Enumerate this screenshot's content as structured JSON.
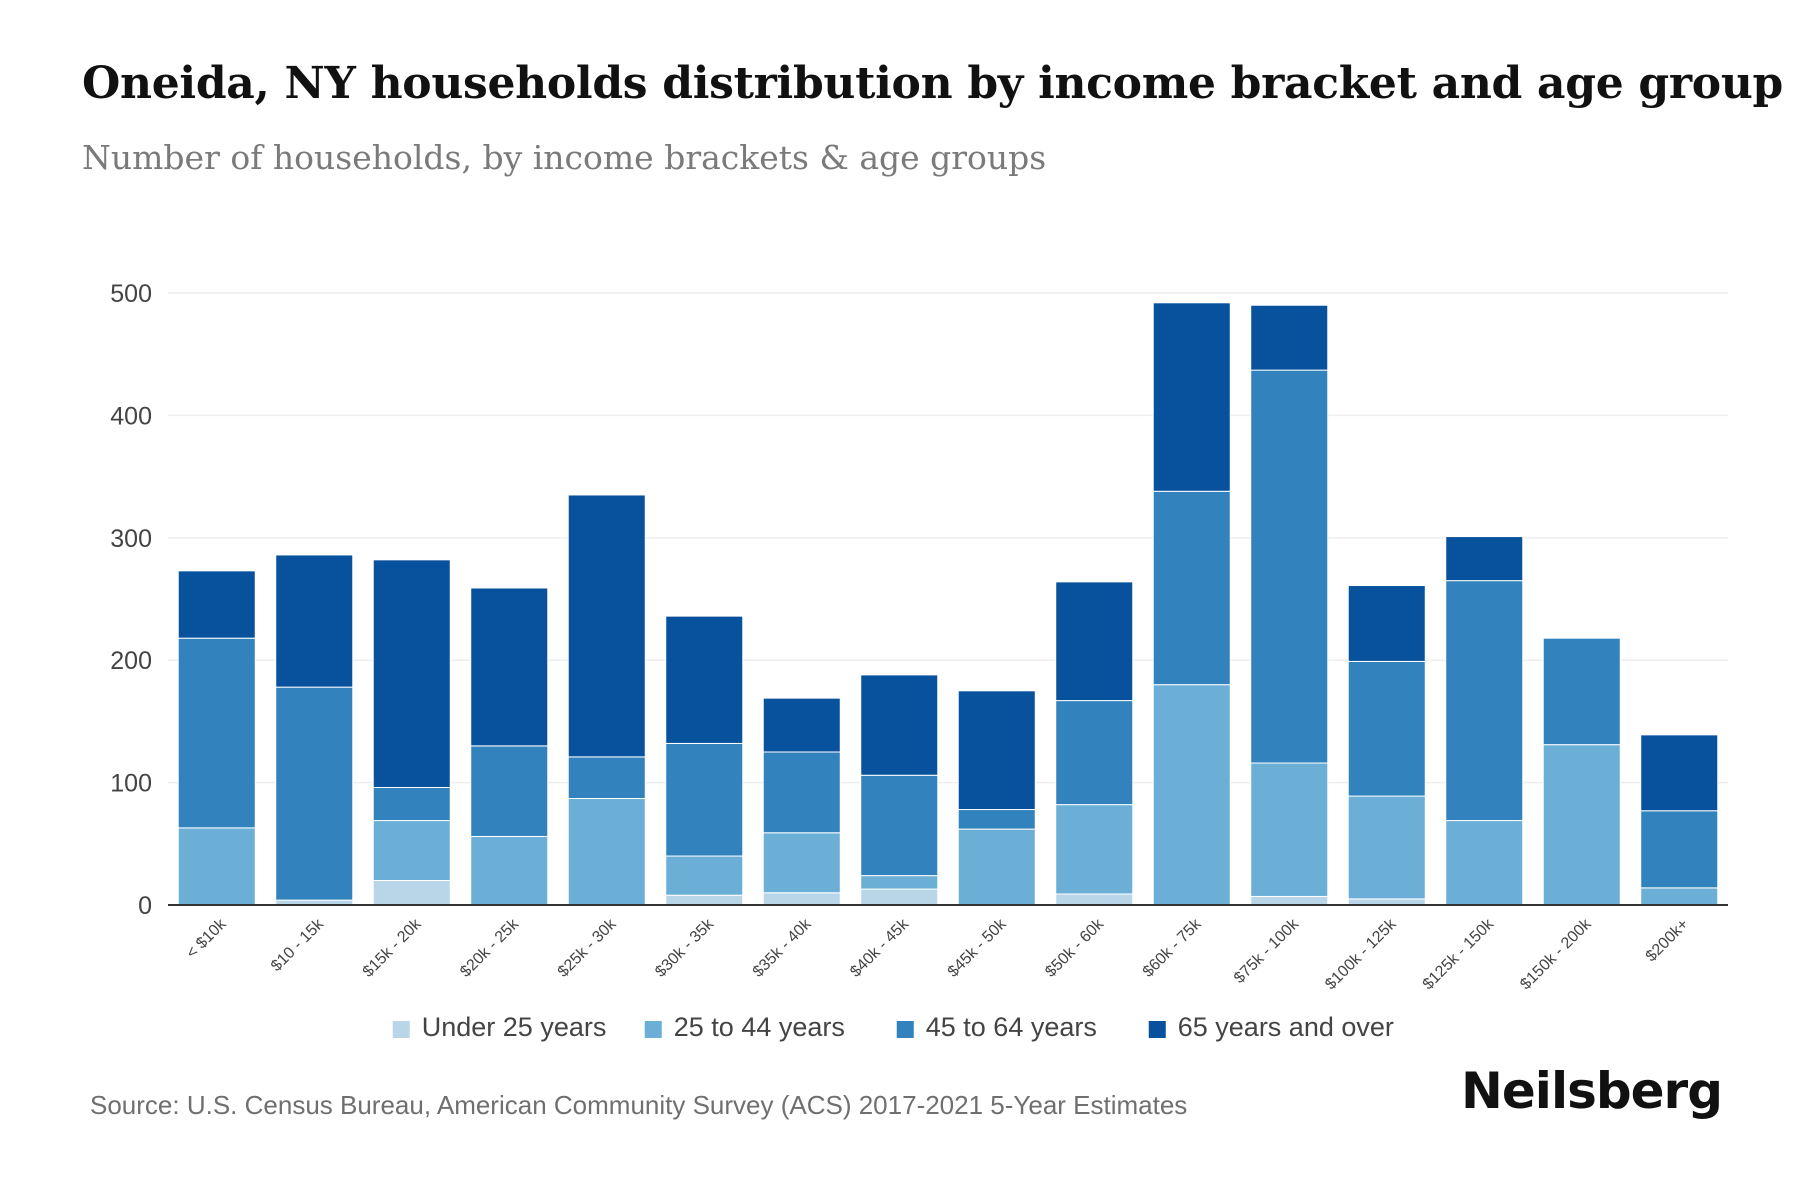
{
  "title": "Oneida, NY households distribution by income bracket and age group",
  "subtitle": "Number of households, by income brackets & age groups",
  "source": "Source: U.S. Census Bureau, American Community Survey (ACS) 2017-2021 5-Year Estimates",
  "brand": "Neilsberg",
  "colors": {
    "under_25": "#b8d6e8",
    "age_25_44": "#6baed6",
    "age_45_64": "#3182bd",
    "age_65_over": "#08519c",
    "grid": "#eeeeee",
    "axis": "#333333"
  },
  "chart_data": {
    "type": "bar",
    "stacked": true,
    "title": "Oneida, NY households distribution by income bracket and age group",
    "xlabel": "",
    "ylabel": "",
    "ylim": [
      0,
      500
    ],
    "yticks": [
      0,
      100,
      200,
      300,
      400,
      500
    ],
    "grid": true,
    "legend_position": "bottom",
    "categories": [
      "< $10k",
      "$10 - 15k",
      "$15k - 20k",
      "$20k - 25k",
      "$25k - 30k",
      "$30k - 35k",
      "$35k - 40k",
      "$40k - 45k",
      "$45k - 50k",
      "$50k - 60k",
      "$60k - 75k",
      "$75k - 100k",
      "$100k - 125k",
      "$125k - 150k",
      "$150k - 200k",
      "$200k+"
    ],
    "series": [
      {
        "name": "Under 25 years",
        "color_key": "under_25",
        "values": [
          0,
          4,
          20,
          0,
          0,
          8,
          10,
          13,
          0,
          9,
          0,
          7,
          5,
          0,
          0,
          0
        ]
      },
      {
        "name": "25 to 44 years",
        "color_key": "age_25_44",
        "values": [
          63,
          0,
          49,
          56,
          87,
          32,
          49,
          11,
          62,
          73,
          180,
          109,
          84,
          69,
          131,
          14
        ]
      },
      {
        "name": "45 to 64 years",
        "color_key": "age_45_64",
        "values": [
          155,
          174,
          27,
          74,
          34,
          92,
          66,
          82,
          16,
          85,
          158,
          321,
          110,
          196,
          87,
          63
        ]
      },
      {
        "name": "65 years and over",
        "color_key": "age_65_over",
        "values": [
          55,
          108,
          186,
          129,
          214,
          104,
          44,
          82,
          97,
          97,
          154,
          53,
          62,
          36,
          0,
          62
        ]
      }
    ]
  }
}
